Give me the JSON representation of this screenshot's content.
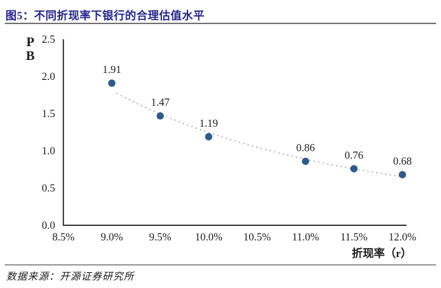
{
  "page": {
    "title": "图5：不同折现率下银行的合理估值水平",
    "source": "数据来源：开源证券研究所"
  },
  "chart_data": {
    "type": "scatter",
    "title": "不同折现率下银行的合理估值水平",
    "xlabel": "折现率（r）",
    "ylabel": "P/B",
    "ylabel_lines": [
      "P",
      "B"
    ],
    "xlim": [
      8.5,
      12.0
    ],
    "ylim": [
      0.0,
      2.5
    ],
    "grid": false,
    "legend": "none",
    "x_ticks": [
      {
        "v": 8.5,
        "label": "8.5%"
      },
      {
        "v": 9.0,
        "label": "9.0%"
      },
      {
        "v": 9.5,
        "label": "9.5%"
      },
      {
        "v": 10.0,
        "label": "10.0%"
      },
      {
        "v": 10.5,
        "label": "10.5%"
      },
      {
        "v": 11.0,
        "label": "11.0%"
      },
      {
        "v": 11.5,
        "label": "11.5%"
      },
      {
        "v": 12.0,
        "label": "12.0%"
      }
    ],
    "y_ticks": [
      {
        "v": 0.0,
        "label": "0.0"
      },
      {
        "v": 0.5,
        "label": "0.5"
      },
      {
        "v": 1.0,
        "label": "1.0"
      },
      {
        "v": 1.5,
        "label": "1.5"
      },
      {
        "v": 2.0,
        "label": "2.0"
      },
      {
        "v": 2.5,
        "label": "2.5"
      }
    ],
    "points": [
      {
        "x": 9.0,
        "y": 1.91,
        "label": "1.91"
      },
      {
        "x": 9.5,
        "y": 1.47,
        "label": "1.47"
      },
      {
        "x": 10.0,
        "y": 1.19,
        "label": "1.19"
      },
      {
        "x": 11.0,
        "y": 0.86,
        "label": "0.86"
      },
      {
        "x": 11.5,
        "y": 0.76,
        "label": "0.76"
      },
      {
        "x": 12.0,
        "y": 0.68,
        "label": "0.68"
      }
    ],
    "trendline": {
      "fit": "power",
      "style": "dotted",
      "color": "#a9a9a9"
    },
    "marker_color": "#2E5B8C",
    "axis_color": "#262626",
    "text_color": "#1a1a1a"
  },
  "colors": {
    "title": "#23238C",
    "title_rule": "#737373",
    "footer_rule": "#404040",
    "background": "#ffffff",
    "marker": "#2E5B8C",
    "trend": "#a9a9a9"
  }
}
